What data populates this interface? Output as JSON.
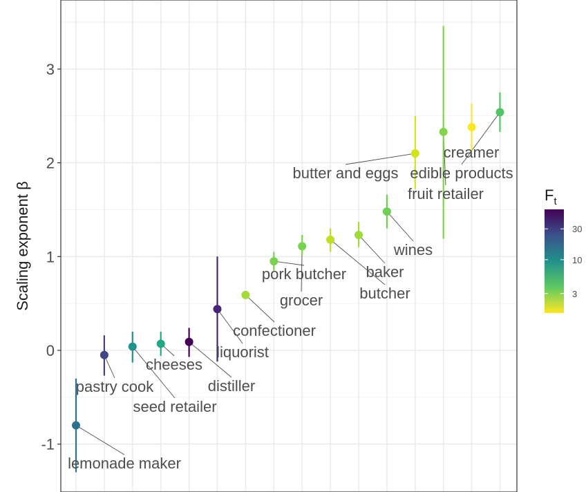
{
  "chart_data": {
    "type": "scatter",
    "xlabel": "",
    "ylabel": "Scaling exponent β",
    "ylim": [
      -1.35,
      3.75
    ],
    "y_ticks": [
      -1,
      0,
      1,
      2,
      3
    ],
    "y_tick_labels": [
      "-1",
      "0",
      "1",
      "2",
      "3"
    ],
    "grid": true,
    "legend_position": "right",
    "legend": {
      "title_main": "F",
      "title_sub": "t",
      "scale": "log",
      "range": [
        1.5,
        60
      ],
      "ticks": [
        3,
        10,
        30
      ],
      "tick_labels": [
        "3",
        "10",
        "30"
      ]
    },
    "points": [
      {
        "label": "lemonade maker",
        "y": -0.8,
        "ymin": -1.3,
        "ymax": -0.3,
        "ft": 15,
        "color": "#2c728e"
      },
      {
        "label": "pastry cook",
        "y": -0.05,
        "ymin": -0.27,
        "ymax": 0.16,
        "ft": 40,
        "color": "#414487"
      },
      {
        "label": "seed retailer",
        "y": 0.04,
        "ymin": -0.13,
        "ymax": 0.2,
        "ft": 10,
        "color": "#21918c"
      },
      {
        "label": "cheeses",
        "y": 0.07,
        "ymin": -0.06,
        "ymax": 0.2,
        "ft": 8,
        "color": "#22a884"
      },
      {
        "label": "distiller",
        "y": 0.09,
        "ymin": -0.07,
        "ymax": 0.24,
        "ft": 60,
        "color": "#440154"
      },
      {
        "label": "liquorist",
        "y": 0.44,
        "ymin": -0.12,
        "ymax": 1.0,
        "ft": 55,
        "color": "#482475"
      },
      {
        "label": "confectioner",
        "y": 0.59,
        "ymin": 0.55,
        "ymax": 0.63,
        "ft": 2.5,
        "color": "#a5db36"
      },
      {
        "label": "pork butcher",
        "y": 0.95,
        "ymin": 0.85,
        "ymax": 1.05,
        "ft": 3.5,
        "color": "#7ad151"
      },
      {
        "label": "grocer",
        "y": 1.11,
        "ymin": 1.01,
        "ymax": 1.23,
        "ft": 3.5,
        "color": "#7ad151"
      },
      {
        "label": "butcher",
        "y": 1.18,
        "ymin": 1.05,
        "ymax": 1.3,
        "ft": 2.2,
        "color": "#bddf26"
      },
      {
        "label": "baker",
        "y": 1.23,
        "ymin": 1.1,
        "ymax": 1.37,
        "ft": 3,
        "color": "#a0da39"
      },
      {
        "label": "wines",
        "y": 1.48,
        "ymin": 1.3,
        "ymax": 1.66,
        "ft": 4,
        "color": "#6ece58"
      },
      {
        "label": "butter and eggs",
        "y": 2.1,
        "ymin": 1.72,
        "ymax": 2.5,
        "ft": 1.8,
        "color": "#d2e21b"
      },
      {
        "label": "fruit retailer",
        "y": 2.33,
        "ymin": 1.19,
        "ymax": 3.46,
        "ft": 3.5,
        "color": "#84d44b"
      },
      {
        "label": "creamer",
        "y": 2.38,
        "ymin": 2.13,
        "ymax": 2.63,
        "ft": 1.5,
        "color": "#fde725"
      },
      {
        "label": "edible products",
        "y": 2.54,
        "ymin": 2.33,
        "ymax": 2.75,
        "ft": 5,
        "color": "#52c569"
      }
    ]
  }
}
